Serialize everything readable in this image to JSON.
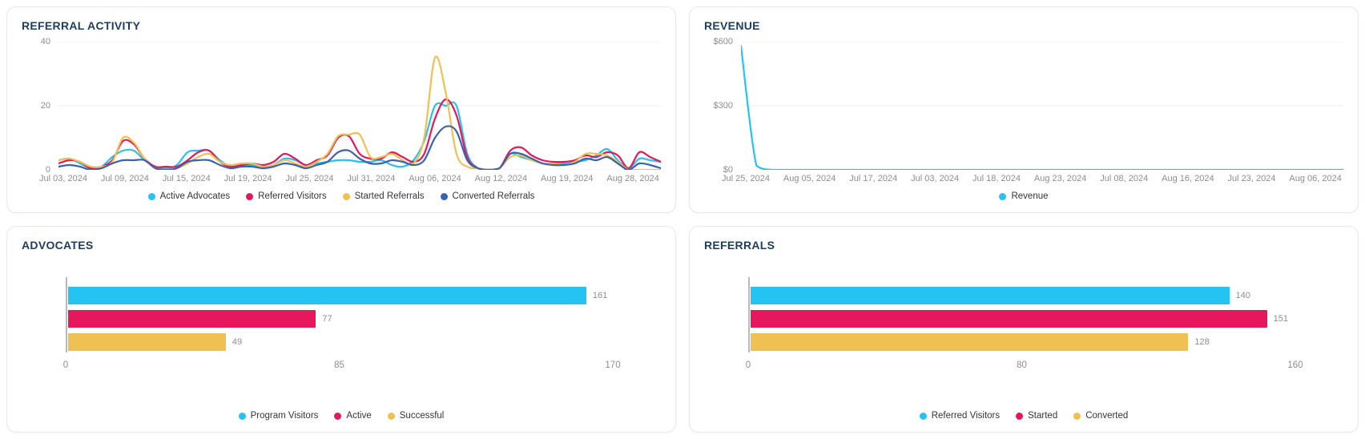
{
  "colors": {
    "cyan": "#25c3f1",
    "crimson": "#e6175c",
    "gold": "#efc153",
    "navy_blue": "#3a62ae",
    "title_text": "#1f3d5c",
    "tick_text": "#8d8d93",
    "legend_text": "#34343e",
    "grid_line": "#ededf0",
    "axis_line": "#b9b9bf",
    "card_border": "#e8e8ec"
  },
  "chart_data": [
    {
      "id": "referral-activity",
      "type": "line",
      "title": "REFERRAL ACTIVITY",
      "grid": true,
      "legend_position": "bottom",
      "ylim": [
        0,
        40
      ],
      "y_ticks": [
        0,
        20,
        40
      ],
      "y_tick_labels": [
        "0",
        "20",
        "40"
      ],
      "x_tick_labels": [
        "Jul 03, 2024",
        "Jul 09, 2024",
        "Jul 15, 2024",
        "Jul 19, 2024",
        "Jul 25, 2024",
        "Jul 31, 2024",
        "Aug 06, 2024",
        "Aug 12, 2024",
        "Aug 19, 2024",
        "Aug 28, 2024"
      ],
      "series": [
        {
          "name": "Active Advocates",
          "color": "#25c3f1",
          "values": [
            3,
            3.5,
            2,
            0.5,
            1,
            4,
            6,
            6,
            3,
            1,
            0.5,
            1.5,
            5.5,
            6,
            6,
            3,
            1,
            1.5,
            1.5,
            1,
            1.5,
            3.5,
            3,
            1.5,
            2,
            2.5,
            3,
            3,
            2.5,
            2.5,
            3,
            1.5,
            1,
            3,
            9,
            20,
            20,
            20,
            5,
            0.5,
            0,
            0.5,
            5,
            4,
            3,
            2,
            2,
            2,
            2.5,
            3,
            4.5,
            6.5,
            3,
            0.5,
            3.5,
            3,
            2.5
          ]
        },
        {
          "name": "Referred Visitors",
          "color": "#e6175c",
          "values": [
            2,
            3,
            2.5,
            0.5,
            1,
            3,
            9,
            8,
            3.5,
            1,
            1,
            1,
            3,
            5.5,
            6,
            2.5,
            1,
            1.5,
            2,
            1.5,
            2.5,
            5,
            3.5,
            1.5,
            3,
            4.5,
            10,
            10.5,
            5,
            3.5,
            3.5,
            5.5,
            4,
            2.5,
            5,
            16,
            22,
            17,
            4,
            0.5,
            0,
            0.5,
            6,
            7,
            4.5,
            3,
            2.5,
            2.5,
            3,
            4.5,
            4,
            5.5,
            4.5,
            0.5,
            5.5,
            4,
            2.5
          ]
        },
        {
          "name": "Started Referrals",
          "color": "#efc153",
          "values": [
            3,
            3.5,
            2.5,
            1,
            1,
            2.5,
            10,
            8.5,
            3.5,
            0.5,
            0,
            0.5,
            2,
            4,
            5,
            2.5,
            1.5,
            2,
            2,
            1,
            1.5,
            3,
            2,
            1,
            2.5,
            5,
            10.5,
            11,
            11,
            4,
            4,
            5,
            3,
            2,
            10,
            35,
            24,
            5,
            1,
            0.5,
            0,
            0.5,
            4,
            4.5,
            3,
            2,
            2,
            1.5,
            2.5,
            5,
            5,
            4.5,
            2.5,
            0,
            0,
            0,
            0
          ]
        },
        {
          "name": "Converted Referrals",
          "color": "#3a62ae",
          "values": [
            1,
            1.5,
            1,
            0,
            0.5,
            2,
            3,
            3,
            3,
            0.5,
            0,
            0.5,
            2.5,
            3,
            3,
            1.5,
            0.5,
            1,
            1,
            0.5,
            1,
            2,
            1.5,
            0.5,
            1.5,
            2.5,
            5.5,
            6,
            3.5,
            2,
            2,
            3,
            2.5,
            1.5,
            3,
            10,
            13.5,
            12,
            3,
            0.5,
            0,
            0.5,
            5,
            5,
            3.5,
            2,
            1.5,
            1.5,
            2,
            3.5,
            3,
            4,
            2,
            0,
            2,
            1.5,
            0.5
          ]
        }
      ]
    },
    {
      "id": "revenue",
      "type": "line",
      "title": "REVENUE",
      "grid": true,
      "legend_position": "bottom",
      "ylim": [
        0,
        600
      ],
      "y_ticks": [
        0,
        300,
        600
      ],
      "y_tick_labels": [
        "$0",
        "$300",
        "$600"
      ],
      "x_tick_labels": [
        "Jul 25, 2024",
        "Aug 05, 2024",
        "Jul 17, 2024",
        "Jul 03, 2024",
        "Jul 18, 2024",
        "Aug 23, 2024",
        "Jul 08, 2024",
        "Aug 16, 2024",
        "Jul 23, 2024",
        "Aug 06, 2024"
      ],
      "series": [
        {
          "name": "Revenue",
          "color": "#25c3f1",
          "values": [
            580,
            20,
            0,
            0,
            0,
            0,
            0,
            0,
            0,
            0,
            0,
            0,
            0,
            0,
            0,
            0,
            0,
            0,
            0,
            0,
            0,
            0,
            0,
            0,
            0,
            0,
            0,
            0,
            0,
            0,
            0,
            0,
            0,
            0,
            0,
            0,
            0,
            0,
            0,
            0
          ]
        }
      ]
    },
    {
      "id": "advocates",
      "type": "bar-horizontal",
      "title": "ADVOCATES",
      "legend_position": "bottom",
      "xlim": [
        0,
        170
      ],
      "x_ticks": [
        0,
        85,
        170
      ],
      "x_tick_labels": [
        "0",
        "85",
        "170"
      ],
      "bars": [
        {
          "name": "Program Visitors",
          "color": "#25c3f1",
          "value": 161
        },
        {
          "name": "Active",
          "color": "#e6175c",
          "value": 77
        },
        {
          "name": "Successful",
          "color": "#efc153",
          "value": 49
        }
      ]
    },
    {
      "id": "referrals",
      "type": "bar-horizontal",
      "title": "REFERRALS",
      "legend_position": "bottom",
      "xlim": [
        0,
        160
      ],
      "x_ticks": [
        0,
        80,
        160
      ],
      "x_tick_labels": [
        "0",
        "80",
        "160"
      ],
      "bars": [
        {
          "name": "Referred Visitors",
          "color": "#25c3f1",
          "value": 140
        },
        {
          "name": "Started",
          "color": "#e6175c",
          "value": 151
        },
        {
          "name": "Converted",
          "color": "#efc153",
          "value": 128
        }
      ]
    }
  ]
}
